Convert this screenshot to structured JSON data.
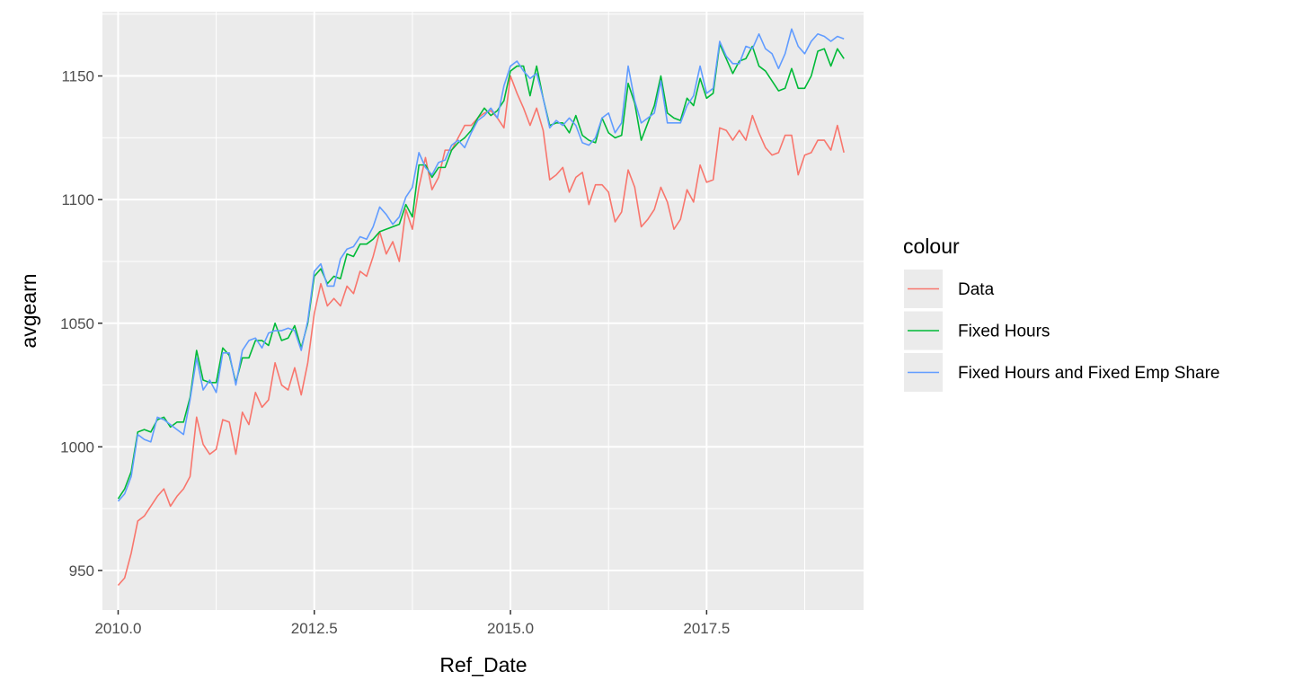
{
  "chart_data": {
    "type": "line",
    "xlabel": "Ref_Date",
    "ylabel": "avgearn",
    "xlim": [
      2009.8,
      2019.5
    ],
    "ylim": [
      934,
      1176
    ],
    "x_ticks": [
      2010.0,
      2012.5,
      2015.0,
      2017.5
    ],
    "x_tick_labels": [
      "2010.0",
      "2012.5",
      "2015.0",
      "2017.5"
    ],
    "y_ticks": [
      950,
      1000,
      1050,
      1100,
      1150
    ],
    "y_tick_labels": [
      "950",
      "1000",
      "1050",
      "1100",
      "1150"
    ],
    "grid": true,
    "panel_background": "#ebebeb",
    "legend_title": "colour",
    "legend_position": "right",
    "x_start": 2010.0,
    "x_step_years": 0.0833333,
    "series": [
      {
        "name": "Data",
        "color": "#F8766D",
        "values": [
          944,
          947,
          957,
          970,
          972,
          976,
          980,
          983,
          976,
          980,
          983,
          988,
          1012,
          1001,
          997,
          999,
          1011,
          1010,
          997,
          1014,
          1009,
          1022,
          1016,
          1019,
          1034,
          1025,
          1023,
          1032,
          1021,
          1034,
          1054,
          1066,
          1057,
          1060,
          1057,
          1065,
          1062,
          1071,
          1069,
          1077,
          1087,
          1078,
          1083,
          1075,
          1096,
          1088,
          1105,
          1117,
          1104,
          1109,
          1120,
          1120,
          1125,
          1130,
          1130,
          1133,
          1135,
          1136,
          1133,
          1129,
          1150,
          1143,
          1137,
          1130,
          1137,
          1128,
          1108,
          1110,
          1113,
          1103,
          1109,
          1111,
          1098,
          1106,
          1106,
          1103,
          1091,
          1095,
          1112,
          1105,
          1089,
          1092,
          1096,
          1105,
          1099,
          1088,
          1092,
          1104,
          1099,
          1114,
          1107,
          1108,
          1129,
          1128,
          1124,
          1128,
          1124,
          1134,
          1127,
          1121,
          1118,
          1119,
          1126,
          1126,
          1110,
          1118,
          1119,
          1124,
          1124,
          1120,
          1130,
          1119
        ]
      },
      {
        "name": "Fixed Hours",
        "color": "#00BA38",
        "values": [
          979,
          983,
          990,
          1006,
          1007,
          1006,
          1011,
          1012,
          1008,
          1010,
          1010,
          1020,
          1039,
          1027,
          1026,
          1026,
          1040,
          1037,
          1026,
          1036,
          1036,
          1043,
          1043,
          1041,
          1050,
          1043,
          1044,
          1049,
          1040,
          1050,
          1069,
          1072,
          1066,
          1069,
          1068,
          1078,
          1077,
          1082,
          1082,
          1084,
          1087,
          1088,
          1089,
          1090,
          1098,
          1093,
          1114,
          1114,
          1109,
          1113,
          1113,
          1120,
          1123,
          1125,
          1128,
          1133,
          1137,
          1134,
          1136,
          1140,
          1152,
          1154,
          1154,
          1142,
          1154,
          1141,
          1130,
          1131,
          1131,
          1127,
          1134,
          1126,
          1124,
          1123,
          1133,
          1127,
          1125,
          1126,
          1147,
          1139,
          1124,
          1131,
          1138,
          1150,
          1135,
          1133,
          1132,
          1141,
          1138,
          1149,
          1141,
          1143,
          1163,
          1157,
          1151,
          1156,
          1157,
          1162,
          1154,
          1152,
          1148,
          1144,
          1145,
          1153,
          1145,
          1145,
          1150,
          1160,
          1161,
          1154,
          1161,
          1157
        ]
      },
      {
        "name": "Fixed Hours and Fixed Emp Share",
        "color": "#619CFF",
        "values": [
          978,
          981,
          988,
          1005,
          1003,
          1002,
          1012,
          1011,
          1009,
          1007,
          1005,
          1019,
          1036,
          1023,
          1027,
          1022,
          1038,
          1038,
          1025,
          1039,
          1043,
          1044,
          1040,
          1046,
          1047,
          1047,
          1048,
          1047,
          1039,
          1051,
          1071,
          1074,
          1065,
          1065,
          1076,
          1080,
          1081,
          1085,
          1084,
          1089,
          1097,
          1094,
          1090,
          1093,
          1101,
          1105,
          1119,
          1113,
          1110,
          1115,
          1116,
          1122,
          1124,
          1121,
          1127,
          1132,
          1134,
          1137,
          1133,
          1146,
          1154,
          1156,
          1152,
          1149,
          1151,
          1141,
          1129,
          1132,
          1130,
          1133,
          1130,
          1123,
          1122,
          1125,
          1133,
          1135,
          1127,
          1131,
          1154,
          1140,
          1131,
          1133,
          1135,
          1148,
          1131,
          1131,
          1131,
          1138,
          1142,
          1154,
          1143,
          1145,
          1164,
          1158,
          1155,
          1155,
          1162,
          1161,
          1167,
          1161,
          1159,
          1153,
          1159,
          1169,
          1162,
          1159,
          1164,
          1167,
          1166,
          1164,
          1166,
          1165
        ]
      }
    ]
  }
}
